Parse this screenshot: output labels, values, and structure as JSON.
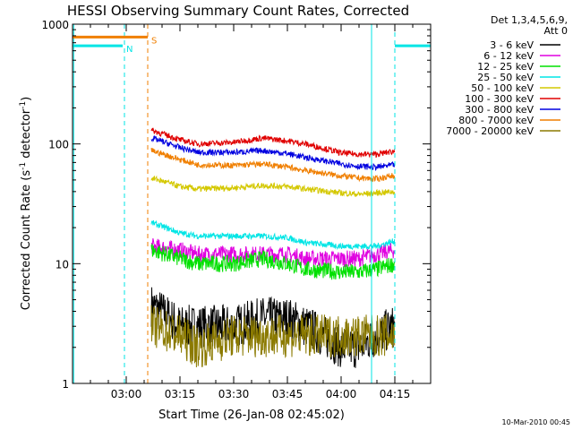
{
  "chart_data": {
    "type": "line",
    "title": "HESSI Observing Summary Count Rates, Corrected",
    "xlabel": "Start Time (26-Jan-08 02:45:02)",
    "ylabel": "Corrected Count Rate (s⁻¹ detector⁻¹)",
    "ylabel_main": "Corrected Count Rate (s",
    "ylabel_sup1": "-1",
    "ylabel_mid": " detector",
    "ylabel_sup2": "-1",
    "ylabel_end": ")",
    "xlim": [
      "02:45:00",
      "04:25:00"
    ],
    "ylim": [
      1,
      1000
    ],
    "yscale": "log",
    "x_ticks": [
      "03:00",
      "03:15",
      "03:30",
      "03:45",
      "04:00",
      "04:15"
    ],
    "y_ticks": [
      "1",
      "10",
      "100",
      "1000"
    ],
    "legend_header": [
      "Det 1,3,4,5,6,9,",
      "Att 0"
    ],
    "legend_placement": "right",
    "footer": "10-Mar-2010 00:45",
    "flags": [
      {
        "label": "S",
        "color": "#f07f00",
        "start": "02:45",
        "end": "03:06",
        "value": 780
      },
      {
        "label": "N",
        "color": "#00e5e5",
        "start": "02:45",
        "end": "02:59",
        "value": 660
      },
      {
        "label": "",
        "color": "#00e5e5",
        "start": "04:15",
        "end": "04:25",
        "value": 660
      }
    ],
    "vlines": [
      {
        "time": "02:45:20",
        "color": "#00e5e5",
        "style": "solid"
      },
      {
        "time": "02:59:30",
        "color": "#00e5e5",
        "style": "dashed"
      },
      {
        "time": "03:06:00",
        "color": "#f07f00",
        "style": "dashed"
      },
      {
        "time": "04:08:30",
        "color": "#00e5e5",
        "style": "solid"
      },
      {
        "time": "04:15:00",
        "color": "#00e5e5",
        "style": "dashed"
      }
    ],
    "x": [
      "03:07",
      "03:15",
      "03:20",
      "03:30",
      "03:38",
      "03:45",
      "03:50",
      "04:00",
      "04:05",
      "04:10",
      "04:15"
    ],
    "series": [
      {
        "name": "3 - 6 keV",
        "color": "#000000",
        "values": [
          4.5,
          3,
          3,
          3,
          3.5,
          3.5,
          3,
          2,
          2,
          2.5,
          3
        ]
      },
      {
        "name": "6 - 12 keV",
        "color": "#e000e0",
        "values": [
          14,
          13,
          12,
          12,
          12,
          12,
          11,
          11,
          11,
          12,
          13
        ]
      },
      {
        "name": "12 - 25 keV",
        "color": "#00e000",
        "values": [
          13,
          11,
          10,
          10,
          11,
          10,
          9,
          8.5,
          8.5,
          9,
          10
        ]
      },
      {
        "name": "25 - 50 keV",
        "color": "#00e5e5",
        "values": [
          22,
          18,
          17,
          17,
          17,
          16.5,
          15,
          14,
          14,
          14,
          15.5
        ]
      },
      {
        "name": "50 - 100 keV",
        "color": "#d4c800",
        "values": [
          52,
          44,
          42,
          43,
          45,
          44,
          42,
          39,
          38,
          39,
          40
        ]
      },
      {
        "name": "100 - 300 keV",
        "color": "#e00000",
        "values": [
          130,
          108,
          100,
          103,
          112,
          106,
          100,
          84,
          82,
          82,
          87
        ]
      },
      {
        "name": "300 - 800 keV",
        "color": "#0000e0",
        "values": [
          112,
          93,
          85,
          85,
          88,
          83,
          77,
          68,
          65,
          64,
          67
        ]
      },
      {
        "name": "800 - 7000 keV",
        "color": "#f07f00",
        "values": [
          88,
          74,
          67,
          66,
          68,
          64,
          60,
          54,
          52,
          51,
          55
        ]
      },
      {
        "name": "7000 - 20000 keV",
        "color": "#8b7a00",
        "values": [
          3,
          2.5,
          2,
          2.5,
          2.5,
          2.5,
          2.5,
          2.5,
          2.5,
          2.5,
          2.5
        ]
      }
    ]
  }
}
